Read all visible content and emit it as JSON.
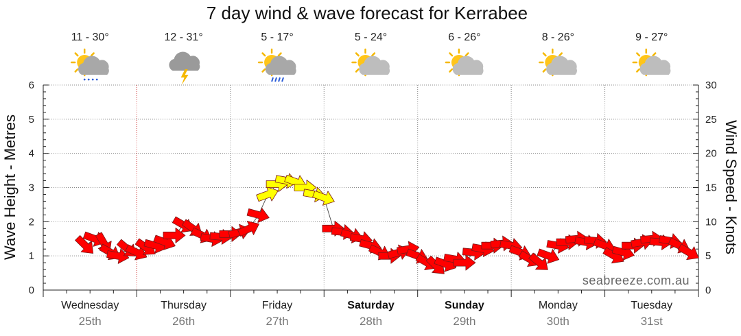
{
  "chart_data": {
    "type": "line",
    "title": "7 day wind & wave forecast for Kerrabee",
    "ylabel_left": "Wave Height - Metres",
    "ylabel_right": "Wind Speed - Knots",
    "ylim_left": [
      0,
      6
    ],
    "ylim_right": [
      0,
      30
    ],
    "yticks_left": [
      "0",
      "1",
      "2",
      "3",
      "4",
      "5",
      "6"
    ],
    "yticks_right": [
      "0",
      "5",
      "10",
      "15",
      "20",
      "25",
      "30"
    ],
    "watermark": "seabreeze.com.au",
    "days": [
      {
        "day": "Wednesday",
        "date": "25th",
        "bold": false,
        "temp": "11 - 30°",
        "icon": "cloud-sun-drizzle-icon"
      },
      {
        "day": "Thursday",
        "date": "26th",
        "bold": false,
        "temp": "12 - 31°",
        "icon": "cloud-lightning-icon"
      },
      {
        "day": "Friday",
        "date": "27th",
        "bold": false,
        "temp": "5 - 17°",
        "icon": "cloud-sun-rain-icon"
      },
      {
        "day": "Saturday",
        "date": "28th",
        "bold": true,
        "temp": "5 - 24°",
        "icon": "sun-cloud-icon"
      },
      {
        "day": "Sunday",
        "date": "29th",
        "bold": true,
        "temp": "6 - 26°",
        "icon": "sun-cloud-icon"
      },
      {
        "day": "Monday",
        "date": "30th",
        "bold": false,
        "temp": "8 - 26°",
        "icon": "sun-cloud-icon"
      },
      {
        "day": "Tuesday",
        "date": "31st",
        "bold": false,
        "temp": "9 - 27°",
        "icon": "sun-cloud-icon"
      }
    ],
    "now_marker_day_fraction": 1.0,
    "wind_series": {
      "name": "Wind",
      "color_low": "#ff0000",
      "color_high": "#ffff00",
      "points": [
        [
          0.45,
          6.5,
          45
        ],
        [
          0.55,
          7.5,
          20
        ],
        [
          0.65,
          6.8,
          60
        ],
        [
          0.72,
          5.5,
          30
        ],
        [
          0.8,
          5.0,
          10
        ],
        [
          0.9,
          6.0,
          40
        ],
        [
          1.0,
          5.5,
          25
        ],
        [
          1.1,
          6.2,
          35
        ],
        [
          1.2,
          6.5,
          15
        ],
        [
          1.3,
          7.0,
          20
        ],
        [
          1.4,
          8.0,
          0
        ],
        [
          1.5,
          9.5,
          30
        ],
        [
          1.6,
          9.0,
          35
        ],
        [
          1.7,
          8.0,
          25
        ],
        [
          1.8,
          7.5,
          10
        ],
        [
          1.9,
          7.8,
          5
        ],
        [
          2.0,
          8.2,
          0
        ],
        [
          2.1,
          8.5,
          -15
        ],
        [
          2.2,
          9.0,
          -25
        ],
        [
          2.3,
          11.0,
          15
        ],
        [
          2.4,
          14.0,
          -20
        ],
        [
          2.5,
          15.5,
          0
        ],
        [
          2.6,
          16.0,
          10
        ],
        [
          2.7,
          15.8,
          20
        ],
        [
          2.8,
          15.0,
          0
        ],
        [
          2.9,
          14.0,
          10
        ],
        [
          3.0,
          13.5,
          20
        ],
        [
          3.1,
          9.0,
          0
        ],
        [
          3.2,
          8.5,
          5
        ],
        [
          3.3,
          8.0,
          15
        ],
        [
          3.4,
          7.5,
          10
        ],
        [
          3.5,
          6.5,
          15
        ],
        [
          3.6,
          5.5,
          25
        ],
        [
          3.7,
          5.0,
          0
        ],
        [
          3.8,
          5.5,
          -15
        ],
        [
          3.9,
          6.0,
          -10
        ],
        [
          4.0,
          5.0,
          20
        ],
        [
          4.1,
          4.0,
          30
        ],
        [
          4.2,
          3.5,
          45
        ],
        [
          4.3,
          3.8,
          20
        ],
        [
          4.4,
          4.5,
          10
        ],
        [
          4.5,
          4.0,
          0
        ],
        [
          4.6,
          5.5,
          5
        ],
        [
          4.7,
          6.0,
          10
        ],
        [
          4.8,
          6.5,
          0
        ],
        [
          4.9,
          6.8,
          -5
        ],
        [
          5.0,
          6.5,
          10
        ],
        [
          5.1,
          5.5,
          20
        ],
        [
          5.2,
          4.5,
          30
        ],
        [
          5.3,
          4.0,
          40
        ],
        [
          5.4,
          5.0,
          20
        ],
        [
          5.5,
          6.5,
          10
        ],
        [
          5.6,
          7.0,
          0
        ],
        [
          5.7,
          7.5,
          -5
        ],
        [
          5.8,
          7.0,
          10
        ],
        [
          5.9,
          7.2,
          5
        ],
        [
          6.0,
          6.5,
          20
        ],
        [
          6.1,
          5.0,
          30
        ],
        [
          6.2,
          5.5,
          15
        ],
        [
          6.3,
          6.5,
          0
        ],
        [
          6.4,
          7.0,
          -10
        ],
        [
          6.5,
          7.5,
          -5
        ],
        [
          6.6,
          7.0,
          5
        ],
        [
          6.7,
          7.2,
          10
        ],
        [
          6.8,
          6.5,
          25
        ],
        [
          6.9,
          5.5,
          30
        ]
      ]
    }
  }
}
